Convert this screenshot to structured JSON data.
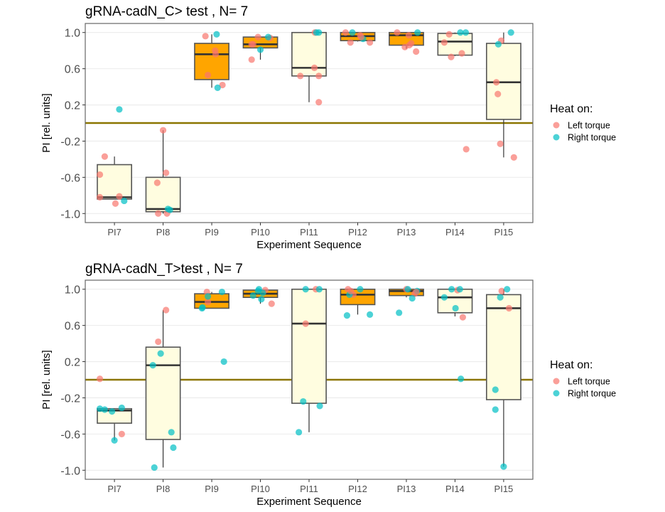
{
  "legend": {
    "title": "Heat on:",
    "items": [
      {
        "key": "L",
        "label": "Left torque",
        "color": "#F8766D"
      },
      {
        "key": "R",
        "label": "Right torque",
        "color": "#00BFC4"
      }
    ]
  },
  "colors": {
    "box_test": "#FFA500",
    "box_train": "#FFFDE0",
    "box_stroke": "#555555",
    "median": "#333333",
    "zero_line": "#8B7500",
    "grid": "#EBEBEB",
    "panel_border": "#666666"
  },
  "chart_data": [
    {
      "type": "box",
      "title": "gRNA-cadN_C> test , N= 7",
      "xlabel": "Experiment Sequence",
      "ylabel": "PI [rel. units]",
      "ylim": [
        -1.1,
        1.1
      ],
      "yticks": [
        "1.0",
        "0.6",
        "0.2",
        "-0.2",
        "-0.6",
        "-1.0"
      ],
      "ytick_values": [
        1.0,
        0.6,
        0.2,
        -0.2,
        -0.6,
        -1.0
      ],
      "hline": 0,
      "grid": true,
      "legend_position": "right",
      "categories": [
        "PI7",
        "PI8",
        "PI9",
        "PI10",
        "PI11",
        "PI12",
        "PI13",
        "PI14",
        "PI15"
      ],
      "boxes": [
        {
          "cat": "PI7",
          "fill": "train",
          "lower": -0.84,
          "q1": -0.84,
          "median": -0.82,
          "q3": -0.46,
          "upper": -0.37
        },
        {
          "cat": "PI8",
          "fill": "train",
          "lower": -1.0,
          "q1": -0.98,
          "median": -0.95,
          "q3": -0.6,
          "upper": -0.08
        },
        {
          "cat": "PI9",
          "fill": "test",
          "lower": 0.39,
          "q1": 0.48,
          "median": 0.76,
          "q3": 0.88,
          "upper": 0.98
        },
        {
          "cat": "PI10",
          "fill": "test",
          "lower": 0.7,
          "q1": 0.83,
          "median": 0.87,
          "q3": 0.95,
          "upper": 0.95
        },
        {
          "cat": "PI11",
          "fill": "train",
          "lower": 0.23,
          "q1": 0.52,
          "median": 0.61,
          "q3": 1.0,
          "upper": 1.0
        },
        {
          "cat": "PI12",
          "fill": "test",
          "lower": 0.9,
          "q1": 0.91,
          "median": 0.96,
          "q3": 1.0,
          "upper": 1.0
        },
        {
          "cat": "PI13",
          "fill": "test",
          "lower": 0.82,
          "q1": 0.86,
          "median": 0.97,
          "q3": 1.0,
          "upper": 1.0
        },
        {
          "cat": "PI14",
          "fill": "train",
          "lower": 0.74,
          "q1": 0.75,
          "median": 0.9,
          "q3": 0.99,
          "upper": 1.0
        },
        {
          "cat": "PI15",
          "fill": "train",
          "lower": -0.38,
          "q1": 0.04,
          "median": 0.45,
          "q3": 0.88,
          "upper": 1.0
        }
      ],
      "points": [
        {
          "cat": "PI7",
          "g": "L",
          "y": -0.37,
          "j": -0.2
        },
        {
          "cat": "PI7",
          "g": "L",
          "y": -0.57,
          "j": -0.3
        },
        {
          "cat": "PI7",
          "g": "L",
          "y": -0.82,
          "j": -0.3
        },
        {
          "cat": "PI7",
          "g": "L",
          "y": -0.81,
          "j": 0.1
        },
        {
          "cat": "PI7",
          "g": "L",
          "y": -0.89,
          "j": 0.02
        },
        {
          "cat": "PI7",
          "g": "R",
          "y": -0.86,
          "j": 0.2
        },
        {
          "cat": "PI7",
          "g": "R",
          "y": 0.15,
          "j": 0.1
        },
        {
          "cat": "PI8",
          "g": "L",
          "y": -0.08,
          "j": 0.0
        },
        {
          "cat": "PI8",
          "g": "L",
          "y": -0.55,
          "j": 0.06
        },
        {
          "cat": "PI8",
          "g": "L",
          "y": -0.66,
          "j": -0.12
        },
        {
          "cat": "PI8",
          "g": "L",
          "y": -1.0,
          "j": -0.1
        },
        {
          "cat": "PI8",
          "g": "L",
          "y": -1.0,
          "j": 0.08
        },
        {
          "cat": "PI8",
          "g": "R",
          "y": -0.95,
          "j": 0.1
        },
        {
          "cat": "PI8",
          "g": "R",
          "y": -0.96,
          "j": 0.14
        },
        {
          "cat": "PI9",
          "g": "L",
          "y": 0.96,
          "j": -0.13
        },
        {
          "cat": "PI9",
          "g": "L",
          "y": 0.8,
          "j": 0.07
        },
        {
          "cat": "PI9",
          "g": "L",
          "y": 0.76,
          "j": 0.08
        },
        {
          "cat": "PI9",
          "g": "L",
          "y": 0.53,
          "j": -0.08
        },
        {
          "cat": "PI9",
          "g": "L",
          "y": 0.42,
          "j": 0.22
        },
        {
          "cat": "PI9",
          "g": "R",
          "y": 0.98,
          "j": 0.1
        },
        {
          "cat": "PI9",
          "g": "R",
          "y": 0.39,
          "j": 0.12
        },
        {
          "cat": "PI10",
          "g": "L",
          "y": 0.95,
          "j": -0.05
        },
        {
          "cat": "PI10",
          "g": "L",
          "y": 0.87,
          "j": -0.18
        },
        {
          "cat": "PI10",
          "g": "L",
          "y": 0.87,
          "j": -0.15
        },
        {
          "cat": "PI10",
          "g": "L",
          "y": 0.7,
          "j": -0.18
        },
        {
          "cat": "PI10",
          "g": "L",
          "y": 0.94,
          "j": 0.2
        },
        {
          "cat": "PI10",
          "g": "R",
          "y": 0.95,
          "j": 0.16
        },
        {
          "cat": "PI10",
          "g": "R",
          "y": 0.81,
          "j": 0.0
        },
        {
          "cat": "PI11",
          "g": "L",
          "y": 1.0,
          "j": 0.12
        },
        {
          "cat": "PI11",
          "g": "L",
          "y": 0.61,
          "j": 0.11
        },
        {
          "cat": "PI11",
          "g": "L",
          "y": 0.52,
          "j": -0.18
        },
        {
          "cat": "PI11",
          "g": "L",
          "y": 0.52,
          "j": 0.2
        },
        {
          "cat": "PI11",
          "g": "L",
          "y": 0.23,
          "j": 0.2
        },
        {
          "cat": "PI11",
          "g": "R",
          "y": 1.0,
          "j": 0.15
        },
        {
          "cat": "PI11",
          "g": "R",
          "y": 1.0,
          "j": 0.2
        },
        {
          "cat": "PI12",
          "g": "L",
          "y": 1.0,
          "j": -0.25
        },
        {
          "cat": "PI12",
          "g": "L",
          "y": 0.89,
          "j": -0.15
        },
        {
          "cat": "PI12",
          "g": "L",
          "y": 0.97,
          "j": 0.05
        },
        {
          "cat": "PI12",
          "g": "L",
          "y": 0.89,
          "j": 0.25
        },
        {
          "cat": "PI12",
          "g": "R",
          "y": 1.0,
          "j": -0.11
        },
        {
          "cat": "PI12",
          "g": "R",
          "y": 0.93,
          "j": 0.11
        },
        {
          "cat": "PI12",
          "g": "L",
          "y": 0.95,
          "j": 0.07
        },
        {
          "cat": "PI13",
          "g": "L",
          "y": 1.0,
          "j": -0.19
        },
        {
          "cat": "PI13",
          "g": "L",
          "y": 0.97,
          "j": 0.05
        },
        {
          "cat": "PI13",
          "g": "L",
          "y": 0.86,
          "j": 0.06
        },
        {
          "cat": "PI13",
          "g": "L",
          "y": 0.88,
          "j": 0.1
        },
        {
          "cat": "PI13",
          "g": "L",
          "y": 0.79,
          "j": 0.2
        },
        {
          "cat": "PI13",
          "g": "R",
          "y": 1.0,
          "j": 0.23
        },
        {
          "cat": "PI13",
          "g": "L",
          "y": 0.84,
          "j": -0.03
        },
        {
          "cat": "PI14",
          "g": "L",
          "y": 0.98,
          "j": -0.12
        },
        {
          "cat": "PI14",
          "g": "L",
          "y": 0.89,
          "j": -0.22
        },
        {
          "cat": "PI14",
          "g": "L",
          "y": 0.73,
          "j": -0.08
        },
        {
          "cat": "PI14",
          "g": "L",
          "y": 0.77,
          "j": 0.14
        },
        {
          "cat": "PI14",
          "g": "L",
          "y": -0.29,
          "j": 0.23
        },
        {
          "cat": "PI14",
          "g": "R",
          "y": 1.0,
          "j": 0.11
        },
        {
          "cat": "PI14",
          "g": "R",
          "y": 1.0,
          "j": 0.22
        },
        {
          "cat": "PI15",
          "g": "L",
          "y": 0.91,
          "j": -0.05
        },
        {
          "cat": "PI15",
          "g": "L",
          "y": 0.45,
          "j": -0.15
        },
        {
          "cat": "PI15",
          "g": "L",
          "y": 0.32,
          "j": -0.12
        },
        {
          "cat": "PI15",
          "g": "L",
          "y": -0.23,
          "j": -0.07
        },
        {
          "cat": "PI15",
          "g": "L",
          "y": -0.38,
          "j": 0.21
        },
        {
          "cat": "PI15",
          "g": "R",
          "y": 0.87,
          "j": -0.11
        },
        {
          "cat": "PI15",
          "g": "R",
          "y": 1.0,
          "j": 0.15
        }
      ]
    },
    {
      "type": "box",
      "title": "gRNA-cadN_T>test , N= 7",
      "xlabel": "Experiment Sequence",
      "ylabel": "PI [rel. units]",
      "ylim": [
        -1.1,
        1.1
      ],
      "yticks": [
        "1.0",
        "0.6",
        "0.2",
        "-0.2",
        "-0.6",
        "-1.0"
      ],
      "ytick_values": [
        1.0,
        0.6,
        0.2,
        -0.2,
        -0.6,
        -1.0
      ],
      "hline": 0,
      "grid": true,
      "legend_position": "right",
      "categories": [
        "PI7",
        "PI8",
        "PI9",
        "PI10",
        "PI11",
        "PI12",
        "PI13",
        "PI14",
        "PI15"
      ],
      "boxes": [
        {
          "cat": "PI7",
          "fill": "train",
          "lower": -0.67,
          "q1": -0.48,
          "median": -0.34,
          "q3": -0.32,
          "upper": -0.32
        },
        {
          "cat": "PI8",
          "fill": "train",
          "lower": -0.97,
          "q1": -0.66,
          "median": 0.16,
          "q3": 0.36,
          "upper": 0.77
        },
        {
          "cat": "PI9",
          "fill": "test",
          "lower": 0.79,
          "q1": 0.79,
          "median": 0.86,
          "q3": 0.95,
          "upper": 0.97
        },
        {
          "cat": "PI10",
          "fill": "test",
          "lower": 0.84,
          "q1": 0.91,
          "median": 0.95,
          "q3": 0.99,
          "upper": 1.0
        },
        {
          "cat": "PI11",
          "fill": "train",
          "lower": -0.58,
          "q1": -0.26,
          "median": 0.62,
          "q3": 1.0,
          "upper": 1.0
        },
        {
          "cat": "PI12",
          "fill": "test",
          "lower": 0.72,
          "q1": 0.83,
          "median": 0.94,
          "q3": 1.0,
          "upper": 1.0
        },
        {
          "cat": "PI13",
          "fill": "test",
          "lower": 0.91,
          "q1": 0.93,
          "median": 0.98,
          "q3": 1.0,
          "upper": 1.0
        },
        {
          "cat": "PI14",
          "fill": "train",
          "lower": 0.7,
          "q1": 0.74,
          "median": 0.91,
          "q3": 1.0,
          "upper": 1.0
        },
        {
          "cat": "PI15",
          "fill": "train",
          "lower": -0.96,
          "q1": -0.22,
          "median": 0.79,
          "q3": 0.94,
          "upper": 1.0
        }
      ],
      "points": [
        {
          "cat": "PI7",
          "g": "L",
          "y": 0.01,
          "j": -0.3
        },
        {
          "cat": "PI7",
          "g": "L",
          "y": -0.6,
          "j": 0.15
        },
        {
          "cat": "PI7",
          "g": "R",
          "y": -0.32,
          "j": -0.3
        },
        {
          "cat": "PI7",
          "g": "R",
          "y": -0.33,
          "j": -0.2
        },
        {
          "cat": "PI7",
          "g": "R",
          "y": -0.35,
          "j": -0.05
        },
        {
          "cat": "PI7",
          "g": "R",
          "y": -0.31,
          "j": 0.15
        },
        {
          "cat": "PI7",
          "g": "R",
          "y": -0.67,
          "j": 0.0
        },
        {
          "cat": "PI8",
          "g": "L",
          "y": 0.77,
          "j": 0.06
        },
        {
          "cat": "PI8",
          "g": "L",
          "y": 0.42,
          "j": -0.1
        },
        {
          "cat": "PI8",
          "g": "R",
          "y": 0.29,
          "j": -0.05
        },
        {
          "cat": "PI8",
          "g": "R",
          "y": 0.16,
          "j": -0.21
        },
        {
          "cat": "PI8",
          "g": "R",
          "y": -0.58,
          "j": 0.17
        },
        {
          "cat": "PI8",
          "g": "R",
          "y": -0.75,
          "j": 0.21
        },
        {
          "cat": "PI8",
          "g": "R",
          "y": -0.97,
          "j": -0.18
        },
        {
          "cat": "PI9",
          "g": "L",
          "y": 0.97,
          "j": -0.1
        },
        {
          "cat": "PI9",
          "g": "L",
          "y": 0.86,
          "j": -0.08
        },
        {
          "cat": "PI9",
          "g": "R",
          "y": 0.92,
          "j": -0.08
        },
        {
          "cat": "PI9",
          "g": "R",
          "y": 0.97,
          "j": 0.21
        },
        {
          "cat": "PI9",
          "g": "R",
          "y": 0.79,
          "j": -0.2
        },
        {
          "cat": "PI9",
          "g": "R",
          "y": 0.2,
          "j": 0.25
        },
        {
          "cat": "PI9",
          "g": "R",
          "y": 0.8,
          "j": -0.19
        },
        {
          "cat": "PI10",
          "g": "L",
          "y": 0.99,
          "j": 0.1
        },
        {
          "cat": "PI10",
          "g": "L",
          "y": 0.84,
          "j": 0.23
        },
        {
          "cat": "PI10",
          "g": "R",
          "y": 1.0,
          "j": -0.03
        },
        {
          "cat": "PI10",
          "g": "R",
          "y": 0.98,
          "j": -0.05
        },
        {
          "cat": "PI10",
          "g": "R",
          "y": 0.93,
          "j": -0.15
        },
        {
          "cat": "PI10",
          "g": "R",
          "y": 0.96,
          "j": 0.05
        },
        {
          "cat": "PI10",
          "g": "R",
          "y": 0.89,
          "j": 0.02
        },
        {
          "cat": "PI11",
          "g": "L",
          "y": 1.0,
          "j": 0.14
        },
        {
          "cat": "PI11",
          "g": "L",
          "y": 0.62,
          "j": -0.07
        },
        {
          "cat": "PI11",
          "g": "R",
          "y": 1.0,
          "j": -0.07
        },
        {
          "cat": "PI11",
          "g": "R",
          "y": 1.0,
          "j": 0.21
        },
        {
          "cat": "PI11",
          "g": "R",
          "y": -0.24,
          "j": -0.12
        },
        {
          "cat": "PI11",
          "g": "R",
          "y": -0.29,
          "j": 0.22
        },
        {
          "cat": "PI11",
          "g": "R",
          "y": -0.58,
          "j": -0.21
        },
        {
          "cat": "PI12",
          "g": "L",
          "y": 1.0,
          "j": -0.2
        },
        {
          "cat": "PI12",
          "g": "L",
          "y": 0.94,
          "j": -0.09
        },
        {
          "cat": "PI12",
          "g": "R",
          "y": 1.0,
          "j": 0.05
        },
        {
          "cat": "PI12",
          "g": "R",
          "y": 0.94,
          "j": -0.17
        },
        {
          "cat": "PI12",
          "g": "R",
          "y": 0.71,
          "j": -0.22
        },
        {
          "cat": "PI12",
          "g": "R",
          "y": 0.72,
          "j": 0.25
        },
        {
          "cat": "PI12",
          "g": "L",
          "y": 0.98,
          "j": -0.14
        },
        {
          "cat": "PI13",
          "g": "L",
          "y": 1.0,
          "j": 0.0
        },
        {
          "cat": "PI13",
          "g": "L",
          "y": 0.95,
          "j": 0.17
        },
        {
          "cat": "PI13",
          "g": "R",
          "y": 1.0,
          "j": 0.03
        },
        {
          "cat": "PI13",
          "g": "R",
          "y": 0.98,
          "j": 0.22
        },
        {
          "cat": "PI13",
          "g": "R",
          "y": 0.9,
          "j": 0.12
        },
        {
          "cat": "PI13",
          "g": "R",
          "y": 0.74,
          "j": -0.15
        },
        {
          "cat": "PI13",
          "g": "L",
          "y": 0.97,
          "j": 0.2
        },
        {
          "cat": "PI14",
          "g": "L",
          "y": 0.99,
          "j": 0.05
        },
        {
          "cat": "PI14",
          "g": "L",
          "y": 0.69,
          "j": 0.16
        },
        {
          "cat": "PI14",
          "g": "R",
          "y": 1.0,
          "j": -0.07
        },
        {
          "cat": "PI14",
          "g": "R",
          "y": 1.0,
          "j": 0.1
        },
        {
          "cat": "PI14",
          "g": "R",
          "y": 0.91,
          "j": -0.22
        },
        {
          "cat": "PI14",
          "g": "R",
          "y": 0.79,
          "j": 0.01
        },
        {
          "cat": "PI14",
          "g": "R",
          "y": 0.01,
          "j": 0.12
        },
        {
          "cat": "PI15",
          "g": "L",
          "y": 0.98,
          "j": -0.04
        },
        {
          "cat": "PI15",
          "g": "L",
          "y": 0.79,
          "j": 0.11
        },
        {
          "cat": "PI15",
          "g": "R",
          "y": 1.0,
          "j": 0.07
        },
        {
          "cat": "PI15",
          "g": "R",
          "y": 0.91,
          "j": -0.07
        },
        {
          "cat": "PI15",
          "g": "R",
          "y": -0.11,
          "j": -0.17
        },
        {
          "cat": "PI15",
          "g": "R",
          "y": -0.33,
          "j": -0.17
        },
        {
          "cat": "PI15",
          "g": "R",
          "y": -0.96,
          "j": 0.0
        }
      ]
    }
  ]
}
